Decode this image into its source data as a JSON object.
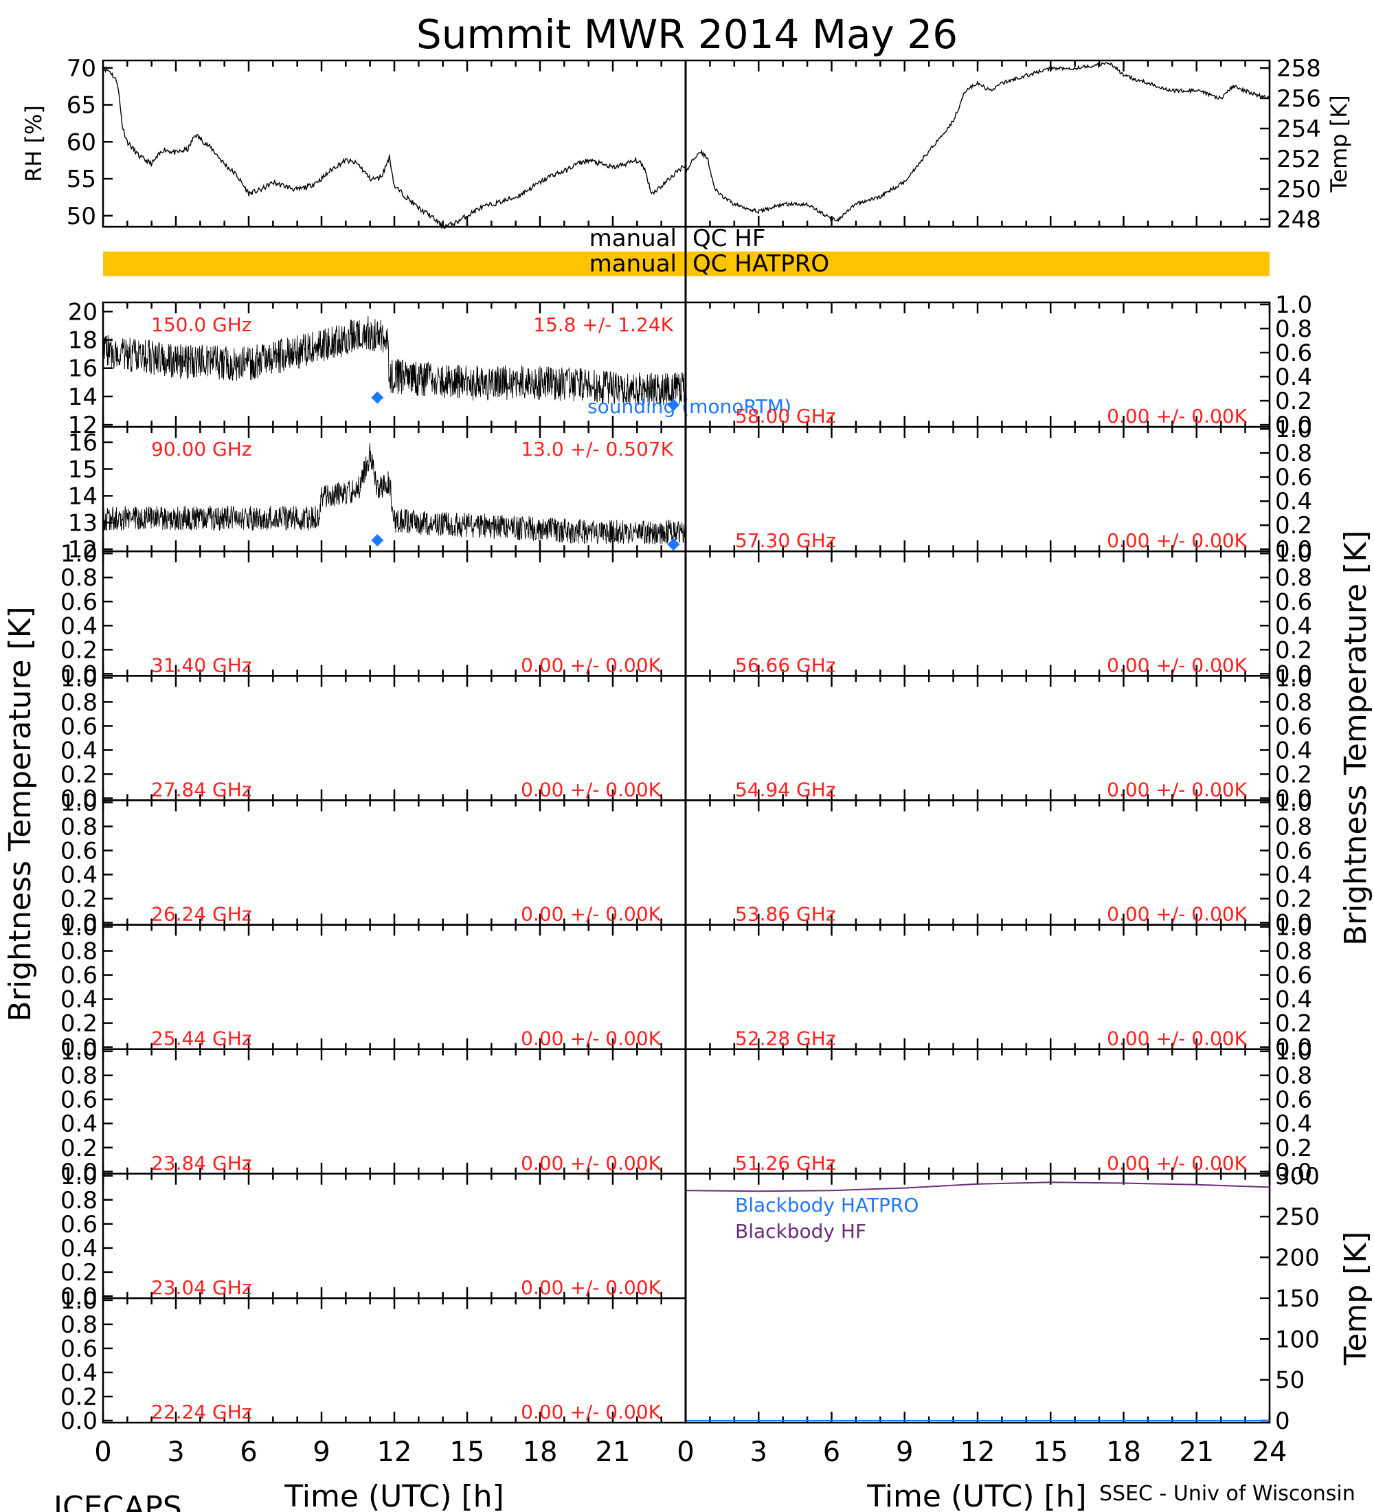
{
  "title": "Summit MWR 2014 May 26",
  "footer_left": "ICECAPS",
  "footer_right": "SSEC - Univ of Wisconsin",
  "xlabel": "Time (UTC) [h]",
  "x_ticks": [
    "0",
    "3",
    "6",
    "9",
    "12",
    "15",
    "18",
    "21"
  ],
  "x_ticks_right": [
    "0",
    "3",
    "6",
    "9",
    "12",
    "15",
    "18",
    "21",
    "24"
  ],
  "ylabel_tb": "Brightness Temperature [K]",
  "ylabel_temp": "Temp [K]",
  "qc": {
    "hf_left": "manual",
    "hf_right": "QC HF",
    "hatpro_left": "manual",
    "hatpro_right": "QC HATPRO",
    "bar_color": "#FFC400"
  },
  "sounding_label": "sounding (monoRTM)",
  "colors": {
    "freq_label": "#FF2020",
    "sounding": "#1E78FF",
    "bb_hf": "#6A2C7A",
    "bb_hatpro": "#1E78FF"
  },
  "chart_data": [
    {
      "id": "rh",
      "type": "line",
      "ylabel": "RH [%]",
      "xlim": [
        0,
        24
      ],
      "ylim": [
        48.5,
        71
      ],
      "yticks": [
        "70",
        "65",
        "60",
        "55",
        "50"
      ],
      "x": [
        0,
        0.3,
        0.6,
        0.8,
        1,
        1.5,
        2,
        2.5,
        3,
        3.5,
        3.8,
        4.5,
        5,
        5.5,
        6,
        6.5,
        7,
        7.5,
        8,
        8.5,
        9,
        9.5,
        10,
        10.5,
        11,
        11.3,
        11.5,
        11.8,
        12,
        12.5,
        13,
        13.5,
        14,
        14.5,
        15,
        15.5,
        16,
        16.5,
        17,
        17.5,
        18,
        18.5,
        19,
        19.5,
        20,
        20.5,
        21,
        21.5,
        22,
        22.3,
        22.6,
        23,
        23.5,
        24
      ],
      "y": [
        70,
        69.5,
        68,
        62,
        60,
        58,
        57,
        59,
        58.5,
        59,
        61,
        59,
        57,
        55.5,
        53,
        53.5,
        54.5,
        54,
        53.5,
        54,
        55,
        56.5,
        57.5,
        57,
        55,
        55,
        55.5,
        58,
        54,
        52.5,
        51,
        50,
        48.5,
        49,
        50,
        51,
        51.5,
        52,
        52.5,
        53.5,
        54.5,
        55.5,
        56,
        57,
        57.5,
        57,
        56.5,
        57,
        57.5,
        56.5,
        53,
        54,
        55.5,
        57
      ]
    },
    {
      "id": "temp",
      "type": "line",
      "ylabel": "Temp [K]",
      "xlim": [
        0,
        24
      ],
      "ylim": [
        247.5,
        258.5
      ],
      "yticks": [
        "258",
        "256",
        "254",
        "252",
        "250",
        "248"
      ],
      "x": [
        0,
        0.3,
        0.6,
        0.9,
        1.2,
        1.5,
        2,
        3,
        4,
        5,
        5.5,
        6,
        6.3,
        7,
        8,
        9,
        10,
        11,
        11.5,
        12,
        12.5,
        13,
        14,
        15,
        16,
        17,
        17.5,
        18,
        19,
        20,
        21,
        22,
        22.5,
        23,
        23.5,
        24
      ],
      "y": [
        251,
        252,
        252.5,
        252,
        250,
        249.5,
        249,
        248.5,
        249,
        249,
        248.5,
        248,
        248,
        249,
        249.5,
        250.5,
        252.5,
        254.5,
        256.5,
        257,
        256.5,
        257,
        257.5,
        258,
        258,
        258.2,
        258.3,
        257.5,
        257,
        256.5,
        256.5,
        256,
        256.8,
        256.5,
        256.2,
        256
      ]
    }
  ],
  "left_panels": [
    {
      "freq": "150.0 GHz",
      "stat": "15.8 +/-  1.24K",
      "ylim": [
        12,
        20.5
      ],
      "yticks": [
        "20",
        "18",
        "16",
        "14",
        "12"
      ],
      "noise": true,
      "segments": [
        [
          0,
          17.2
        ],
        [
          3,
          16.5
        ],
        [
          6,
          16.3
        ],
        [
          9,
          17.5
        ],
        [
          10.8,
          18.5
        ],
        [
          11.7,
          18
        ],
        [
          11.8,
          15.5
        ],
        [
          15,
          15
        ],
        [
          18,
          15
        ],
        [
          21,
          14.7
        ],
        [
          24,
          14.5
        ]
      ],
      "amp": 1.2,
      "sounding": [
        [
          11.3,
          14
        ],
        [
          23.5,
          13.5
        ]
      ]
    },
    {
      "freq": "90.00 GHz",
      "stat": "13.0 +/- 0.507K",
      "ylim": [
        12,
        16.5
      ],
      "yticks": [
        "16",
        "15",
        "14",
        "13",
        "12"
      ],
      "noise": true,
      "segments": [
        [
          0,
          13.2
        ],
        [
          8.9,
          13.2
        ],
        [
          9,
          14
        ],
        [
          10.5,
          14.2
        ],
        [
          11,
          15.5
        ],
        [
          11.3,
          14.2
        ],
        [
          11.8,
          14.5
        ],
        [
          12,
          13.1
        ],
        [
          16,
          12.9
        ],
        [
          20,
          12.7
        ],
        [
          24,
          12.7
        ]
      ],
      "amp": 0.45,
      "sounding": [
        [
          11.3,
          12.4
        ],
        [
          23.5,
          12.25
        ]
      ]
    },
    {
      "freq": "31.40 GHz",
      "stat": "0.00 +/-  0.00K"
    },
    {
      "freq": "27.84 GHz",
      "stat": "0.00 +/-  0.00K"
    },
    {
      "freq": "26.24 GHz",
      "stat": "0.00 +/-  0.00K"
    },
    {
      "freq": "25.44 GHz",
      "stat": "0.00 +/-  0.00K"
    },
    {
      "freq": "23.84 GHz",
      "stat": "0.00 +/-  0.00K"
    },
    {
      "freq": "23.04 GHz",
      "stat": "0.00 +/-  0.00K"
    },
    {
      "freq": "22.24 GHz",
      "stat": "0.00 +/-  0.00K"
    }
  ],
  "right_panels": [
    {
      "freq": "58.00 GHz",
      "stat": "0.00 +/-  0.00K"
    },
    {
      "freq": "57.30 GHz",
      "stat": "0.00 +/-  0.00K"
    },
    {
      "freq": "56.66 GHz",
      "stat": "0.00 +/-  0.00K"
    },
    {
      "freq": "54.94 GHz",
      "stat": "0.00 +/-  0.00K"
    },
    {
      "freq": "53.86 GHz",
      "stat": "0.00 +/-  0.00K"
    },
    {
      "freq": "52.28 GHz",
      "stat": "0.00 +/-  0.00K"
    },
    {
      "freq": "51.26 GHz",
      "stat": "0.00 +/-  0.00K"
    }
  ],
  "empty_yticks": [
    "1.0",
    "0.8",
    "0.6",
    "0.4",
    "0.2",
    "0.0"
  ],
  "blackbody": {
    "ylim": [
      0,
      300
    ],
    "yticks": [
      "300",
      "250",
      "200",
      "150",
      "100",
      "50",
      "0"
    ],
    "label_hatpro": "Blackbody HATPRO",
    "label_hf": "Blackbody HF",
    "hf_x": [
      0,
      3,
      6,
      9,
      12,
      15,
      18,
      21,
      24
    ],
    "hf_y": [
      282,
      281,
      282,
      285,
      290,
      292,
      291,
      289,
      286
    ]
  }
}
